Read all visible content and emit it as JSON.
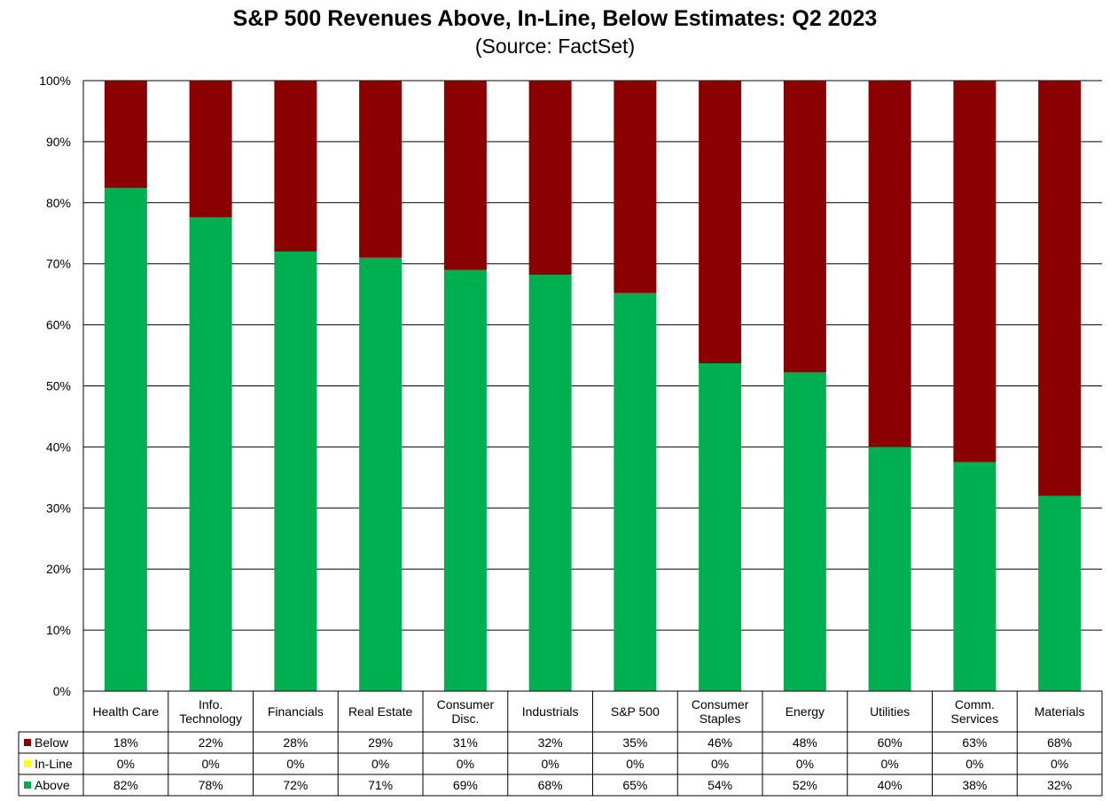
{
  "chart_data": {
    "type": "bar",
    "stacked": true,
    "title": "S&P 500 Revenues Above, In-Line, Below Estimates: Q2 2023",
    "subtitle": "(Source: FactSet)",
    "ylim": [
      0,
      100
    ],
    "yticks": [
      "0%",
      "10%",
      "20%",
      "30%",
      "40%",
      "50%",
      "60%",
      "70%",
      "80%",
      "90%",
      "100%"
    ],
    "categories": [
      [
        "Health Care"
      ],
      [
        "Info.",
        "Technology"
      ],
      [
        "Financials"
      ],
      [
        "Real Estate"
      ],
      [
        "Consumer",
        "Disc."
      ],
      [
        "Industrials"
      ],
      [
        "S&P 500"
      ],
      [
        "Consumer",
        "Staples"
      ],
      [
        "Energy"
      ],
      [
        "Utilities"
      ],
      [
        "Comm.",
        "Services"
      ],
      [
        "Materials"
      ]
    ],
    "bar_values": {
      "above": [
        82.4,
        77.6,
        72.0,
        71.0,
        69.0,
        68.2,
        65.2,
        53.7,
        52.2,
        40.0,
        37.5,
        32.0
      ],
      "inline": [
        0,
        0,
        0,
        0,
        0,
        0,
        0,
        0,
        0,
        0,
        0,
        0
      ],
      "below": [
        17.6,
        22.4,
        28.0,
        29.0,
        31.0,
        31.8,
        34.8,
        46.3,
        47.8,
        60.0,
        62.5,
        68.0
      ]
    },
    "series": [
      {
        "name": "Below",
        "color": "#8B0000",
        "labels": [
          "18%",
          "22%",
          "28%",
          "29%",
          "31%",
          "32%",
          "35%",
          "46%",
          "48%",
          "60%",
          "63%",
          "68%"
        ]
      },
      {
        "name": "In-Line",
        "color": "#FFFF00",
        "labels": [
          "0%",
          "0%",
          "0%",
          "0%",
          "0%",
          "0%",
          "0%",
          "0%",
          "0%",
          "0%",
          "0%",
          "0%"
        ]
      },
      {
        "name": "Above",
        "color": "#00B050",
        "labels": [
          "82%",
          "78%",
          "72%",
          "71%",
          "69%",
          "68%",
          "65%",
          "54%",
          "52%",
          "40%",
          "38%",
          "32%"
        ]
      }
    ],
    "grid": true,
    "legend": "data-table"
  }
}
